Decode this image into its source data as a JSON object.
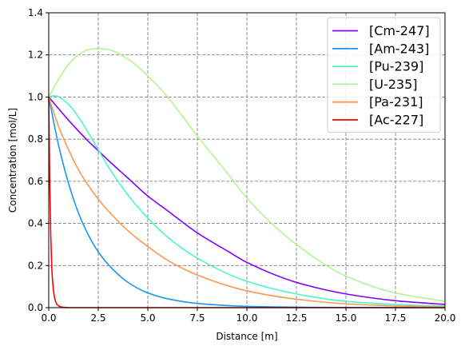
{
  "chart_data": {
    "type": "line",
    "title": "",
    "xlabel": "Distance [m]",
    "ylabel": "Concentration [mol/L]",
    "xlim": [
      0,
      20
    ],
    "ylim": [
      0,
      1.4
    ],
    "xticks": [
      0,
      2.5,
      5,
      7.5,
      10,
      12.5,
      15,
      17.5,
      20
    ],
    "xtick_labels": [
      "0.0",
      "2.5",
      "5.0",
      "7.5",
      "10.0",
      "12.5",
      "15.0",
      "17.5",
      "20.0"
    ],
    "yticks": [
      0,
      0.2,
      0.4,
      0.6,
      0.8,
      1.0,
      1.2,
      1.4
    ],
    "ytick_labels": [
      "0.0",
      "0.2",
      "0.4",
      "0.6",
      "0.8",
      "1.0",
      "1.2",
      "1.4"
    ],
    "grid": true,
    "legend_position": "top-right",
    "series": [
      {
        "name": "[Cm-247]",
        "color": "#8000ff",
        "x": [
          0,
          1,
          2,
          2.5,
          3,
          4,
          5,
          6,
          7.5,
          9,
          10,
          12.5,
          15,
          17.5,
          20
        ],
        "y": [
          1.0,
          0.89,
          0.79,
          0.745,
          0.7,
          0.615,
          0.53,
          0.46,
          0.355,
          0.27,
          0.215,
          0.12,
          0.065,
          0.033,
          0.015
        ]
      },
      {
        "name": "[Am-243]",
        "color": "#1996f3",
        "x": [
          0,
          0.5,
          1,
          1.5,
          2,
          2.5,
          3,
          4,
          5,
          6,
          7.5,
          10,
          12.5,
          15,
          20
        ],
        "y": [
          1.0,
          0.77,
          0.59,
          0.45,
          0.345,
          0.265,
          0.205,
          0.12,
          0.07,
          0.042,
          0.02,
          0.006,
          0.002,
          0.001,
          0.0
        ]
      },
      {
        "name": "[Pu-239]",
        "color": "#4df3ce",
        "x": [
          0,
          0.2,
          0.4,
          0.6,
          1,
          1.5,
          2,
          2.5,
          3,
          4,
          5,
          6,
          7.5,
          10,
          12.5,
          15,
          17.5,
          20
        ],
        "y": [
          1.0,
          1.005,
          1.005,
          0.995,
          0.965,
          0.905,
          0.83,
          0.75,
          0.67,
          0.535,
          0.425,
          0.335,
          0.235,
          0.125,
          0.065,
          0.03,
          0.015,
          0.007
        ]
      },
      {
        "name": "[U-235]",
        "color": "#b2f396",
        "x": [
          0,
          0.5,
          1,
          1.5,
          2,
          2.5,
          3,
          4,
          5,
          6,
          7.5,
          9,
          10,
          12.5,
          15,
          17.5,
          20
        ],
        "y": [
          1.0,
          1.085,
          1.155,
          1.2,
          1.225,
          1.23,
          1.225,
          1.18,
          1.1,
          1.0,
          0.815,
          0.64,
          0.52,
          0.3,
          0.15,
          0.07,
          0.03
        ]
      },
      {
        "name": "[Pa-231]",
        "color": "#ff964f",
        "x": [
          0,
          0.5,
          1,
          1.5,
          2,
          2.5,
          3,
          4,
          5,
          6,
          7.5,
          10,
          12.5,
          15,
          17.5,
          20
        ],
        "y": [
          1.0,
          0.86,
          0.75,
          0.655,
          0.58,
          0.515,
          0.46,
          0.365,
          0.29,
          0.225,
          0.155,
          0.08,
          0.04,
          0.018,
          0.008,
          0.003
        ]
      },
      {
        "name": "[Ac-227]",
        "color": "#ff0000",
        "x": [
          0,
          0.05,
          0.1,
          0.15,
          0.2,
          0.3,
          0.4,
          0.5,
          0.7,
          1,
          20
        ],
        "y": [
          1.0,
          0.6,
          0.35,
          0.2,
          0.12,
          0.045,
          0.018,
          0.008,
          0.002,
          0.0,
          0.0
        ]
      }
    ]
  }
}
